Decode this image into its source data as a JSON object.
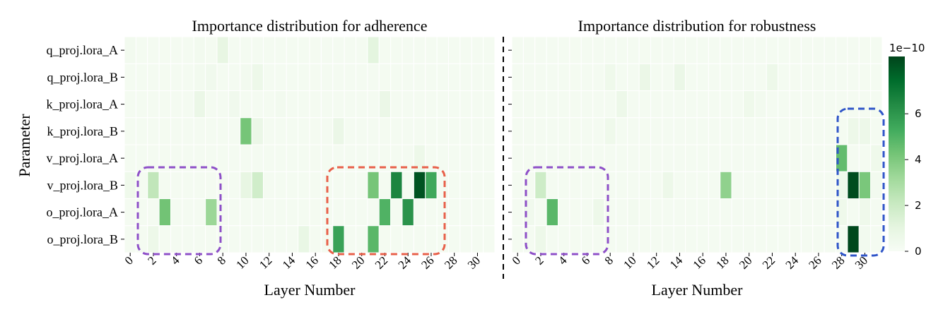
{
  "chart_data": [
    {
      "type": "heatmap",
      "title": "Importance distribution for adherence",
      "xlabel": "Layer Number",
      "ylabel": "Parameter",
      "rows": [
        "q_proj.lora_A",
        "q_proj.lora_B",
        "k_proj.lora_A",
        "k_proj.lora_B",
        "v_proj.lora_A",
        "v_proj.lora_B",
        "o_proj.lora_A",
        "o_proj.lora_B"
      ],
      "columns": [
        0,
        1,
        2,
        3,
        4,
        5,
        6,
        7,
        8,
        9,
        10,
        11,
        12,
        13,
        14,
        15,
        16,
        17,
        18,
        19,
        20,
        21,
        22,
        23,
        24,
        25,
        26,
        27,
        28,
        29,
        30,
        31
      ],
      "x_tick_labels": [
        "0",
        "2",
        "4",
        "6",
        "8",
        "10",
        "12",
        "14",
        "16",
        "18",
        "20",
        "22",
        "24",
        "26",
        "28",
        "30"
      ],
      "values": [
        [
          0.3,
          0.2,
          0.2,
          0.2,
          0.2,
          0.2,
          0.3,
          0.2,
          0.9,
          0.2,
          0.2,
          0.2,
          0.2,
          0.2,
          0.2,
          0.2,
          0.2,
          0.2,
          0.2,
          0.2,
          0.2,
          1.1,
          0.2,
          0.2,
          0.2,
          0.2,
          0.2,
          0.2,
          0.2,
          0.2,
          0.2,
          0.2
        ],
        [
          0.2,
          0.2,
          0.2,
          0.2,
          0.2,
          0.2,
          0.3,
          0.4,
          0.2,
          0.2,
          0.3,
          0.6,
          0.2,
          0.2,
          0.2,
          0.2,
          0.2,
          0.2,
          0.2,
          0.2,
          0.2,
          0.2,
          0.2,
          0.2,
          0.2,
          0.2,
          0.2,
          0.2,
          0.2,
          0.2,
          0.2,
          0.2
        ],
        [
          0.2,
          0.2,
          0.2,
          0.2,
          0.2,
          0.2,
          0.7,
          0.2,
          0.2,
          0.4,
          0.2,
          0.2,
          0.2,
          0.3,
          0.2,
          0.2,
          0.2,
          0.2,
          0.2,
          0.2,
          0.2,
          0.2,
          0.7,
          0.2,
          0.2,
          0.2,
          0.2,
          0.2,
          0.2,
          0.2,
          0.2,
          0.2
        ],
        [
          0.2,
          0.2,
          0.2,
          0.2,
          0.2,
          0.2,
          0.2,
          0.2,
          0.2,
          0.2,
          4.2,
          0.7,
          0.2,
          0.2,
          0.2,
          0.2,
          0.2,
          0.2,
          0.7,
          0.2,
          0.2,
          0.2,
          0.2,
          0.2,
          0.2,
          0.2,
          0.2,
          0.2,
          0.2,
          0.2,
          0.2,
          0.2
        ],
        [
          0.2,
          0.2,
          0.2,
          0.2,
          0.2,
          0.2,
          0.2,
          0.2,
          0.2,
          0.2,
          0.2,
          0.2,
          0.2,
          0.2,
          0.2,
          0.2,
          0.2,
          0.2,
          0.2,
          0.2,
          0.2,
          0.2,
          0.2,
          0.2,
          0.2,
          0.6,
          0.2,
          0.2,
          0.2,
          0.2,
          0.2,
          0.2
        ],
        [
          0.5,
          0.2,
          2.3,
          0.2,
          0.2,
          0.2,
          0.2,
          0.2,
          0.2,
          0.2,
          0.9,
          1.8,
          0.2,
          0.2,
          0.2,
          0.2,
          0.2,
          0.2,
          0.2,
          0.2,
          0.2,
          4.2,
          0.2,
          6.6,
          0.2,
          8.1,
          5.4,
          0.2,
          0.2,
          0.2,
          0.2,
          0.2
        ],
        [
          0.2,
          0.2,
          0.2,
          4.3,
          0.2,
          0.2,
          0.2,
          3.3,
          0.2,
          0.2,
          0.2,
          0.2,
          0.2,
          0.2,
          0.2,
          0.2,
          0.2,
          0.2,
          0.2,
          0.2,
          0.2,
          0.2,
          5.0,
          0.2,
          6.1,
          0.2,
          0.2,
          0.2,
          0.2,
          0.2,
          0.2,
          0.2
        ],
        [
          0.2,
          0.2,
          0.6,
          0.2,
          0.2,
          0.2,
          0.2,
          0.2,
          0.2,
          0.2,
          0.2,
          0.2,
          0.2,
          0.2,
          0.2,
          0.8,
          0.2,
          0.2,
          5.6,
          0.2,
          0.2,
          4.8,
          0.2,
          0.2,
          0.2,
          0.2,
          0.2,
          0.2,
          0.2,
          0.2,
          0.2,
          0.2
        ]
      ]
    },
    {
      "type": "heatmap",
      "title": "Importance distribution for robustness",
      "xlabel": "Layer Number",
      "rows": [
        "q_proj.lora_A",
        "q_proj.lora_B",
        "k_proj.lora_A",
        "k_proj.lora_B",
        "v_proj.lora_A",
        "v_proj.lora_B",
        "o_proj.lora_A",
        "o_proj.lora_B"
      ],
      "columns": [
        0,
        1,
        2,
        3,
        4,
        5,
        6,
        7,
        8,
        9,
        10,
        11,
        12,
        13,
        14,
        15,
        16,
        17,
        18,
        19,
        20,
        21,
        22,
        23,
        24,
        25,
        26,
        27,
        28,
        29,
        30,
        31
      ],
      "x_tick_labels": [
        "0",
        "2",
        "4",
        "6",
        "8",
        "10",
        "12",
        "14",
        "16",
        "18",
        "20",
        "22",
        "24",
        "26",
        "28",
        "30"
      ],
      "values": [
        [
          0.2,
          0.2,
          0.2,
          0.2,
          0.2,
          0.2,
          0.2,
          0.2,
          0.2,
          0.2,
          0.2,
          0.2,
          0.2,
          0.2,
          0.2,
          0.2,
          0.2,
          0.2,
          0.2,
          0.2,
          0.2,
          0.2,
          0.2,
          0.2,
          0.2,
          0.2,
          0.2,
          0.2,
          0.2,
          0.2,
          0.2,
          0.2
        ],
        [
          0.2,
          0.2,
          0.2,
          0.2,
          0.2,
          0.2,
          0.2,
          0.2,
          0.5,
          0.2,
          0.2,
          0.7,
          0.2,
          0.2,
          0.7,
          0.2,
          0.2,
          0.2,
          0.2,
          0.2,
          0.2,
          0.2,
          0.6,
          0.2,
          0.2,
          0.2,
          0.2,
          0.2,
          0.2,
          0.2,
          0.2,
          0.2
        ],
        [
          0.2,
          0.2,
          0.2,
          0.2,
          0.2,
          0.2,
          0.2,
          0.2,
          0.2,
          0.6,
          0.2,
          0.2,
          0.2,
          0.2,
          0.2,
          0.2,
          0.2,
          0.2,
          0.2,
          0.2,
          0.5,
          0.3,
          0.2,
          0.2,
          0.2,
          0.2,
          0.2,
          0.2,
          0.2,
          0.2,
          0.2,
          0.2
        ],
        [
          0.2,
          0.2,
          0.2,
          0.2,
          0.2,
          0.2,
          0.2,
          0.2,
          0.5,
          0.2,
          0.2,
          0.2,
          0.2,
          0.2,
          0.2,
          0.2,
          0.2,
          0.2,
          0.2,
          0.2,
          0.2,
          0.2,
          0.2,
          0.2,
          0.2,
          0.2,
          0.2,
          0.2,
          0.2,
          0.6,
          0.6,
          0.2
        ],
        [
          0.2,
          0.2,
          0.2,
          0.2,
          0.2,
          0.2,
          0.2,
          0.2,
          0.2,
          0.2,
          0.2,
          0.2,
          0.2,
          0.2,
          0.2,
          0.2,
          0.2,
          0.2,
          0.2,
          0.2,
          0.2,
          0.2,
          0.2,
          0.2,
          0.2,
          0.2,
          0.2,
          0.2,
          4.6,
          0.2,
          0.2,
          0.5
        ],
        [
          0.2,
          0.2,
          1.9,
          0.2,
          0.2,
          0.2,
          0.2,
          0.2,
          0.2,
          0.2,
          0.2,
          0.2,
          0.2,
          0.6,
          0.2,
          0.2,
          0.2,
          0.2,
          3.6,
          0.2,
          0.2,
          0.2,
          0.2,
          0.2,
          0.2,
          0.2,
          0.2,
          0.2,
          0.5,
          8.3,
          4.1,
          0.3
        ],
        [
          0.2,
          0.4,
          0.2,
          4.8,
          0.2,
          0.2,
          0.2,
          0.6,
          0.2,
          0.2,
          0.3,
          0.2,
          0.2,
          0.2,
          0.2,
          0.2,
          0.2,
          0.2,
          0.2,
          0.2,
          0.2,
          0.2,
          0.2,
          0.2,
          0.2,
          0.2,
          0.2,
          0.2,
          0.5,
          0.2,
          0.5,
          0.2
        ],
        [
          0.2,
          0.2,
          0.6,
          0.2,
          0.2,
          0.2,
          0.2,
          0.2,
          0.2,
          0.2,
          0.2,
          0.2,
          0.2,
          0.2,
          0.2,
          0.2,
          0.2,
          0.2,
          0.2,
          0.2,
          0.2,
          0.2,
          0.2,
          0.2,
          0.2,
          0.2,
          0.2,
          0.2,
          0.2,
          8.4,
          0.3,
          0.2
        ]
      ]
    }
  ],
  "colorbar": {
    "scale_label": "1e−10",
    "ticks": [
      "0",
      "2",
      "4",
      "6"
    ],
    "tick_values": [
      0,
      2,
      4,
      6
    ],
    "vmin": 0,
    "vmax": 8.5,
    "colormap": "Greens",
    "colors": [
      "#f7fcf5",
      "#e5f5e0",
      "#c7e9c0",
      "#a1d99b",
      "#74c476",
      "#41ab5d",
      "#238b45",
      "#006d2c",
      "#00441b"
    ]
  },
  "highlights": [
    {
      "panel": 0,
      "color": "#8e50c8"
    },
    {
      "panel": 0,
      "color": "#e8604a"
    },
    {
      "panel": 1,
      "color": "#8e50c8"
    },
    {
      "panel": 1,
      "color": "#2f55c8"
    }
  ],
  "divider_color": "#000000"
}
